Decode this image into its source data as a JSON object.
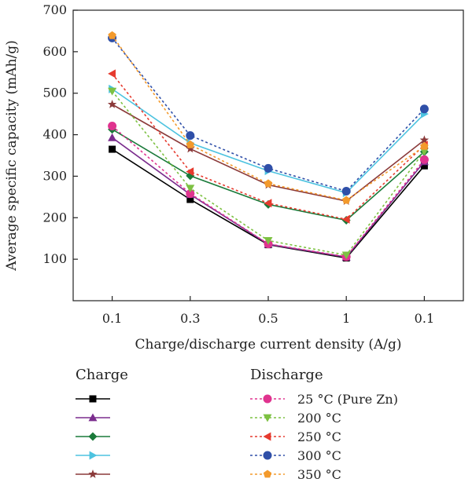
{
  "chart_data": {
    "type": "line",
    "title": "",
    "xlabel": "Charge/discharge current density (A/g)",
    "ylabel": "Average specific capacity (mAh/g)",
    "categories": [
      "0.1",
      "0.3",
      "0.5",
      "1",
      "0.1"
    ],
    "ylim": [
      0,
      700
    ],
    "yticks": [
      "100",
      "200",
      "300",
      "400",
      "500",
      "600",
      "700"
    ],
    "grid": false,
    "legend": {
      "placement": "bottom",
      "charge_title": "Charge",
      "discharge_title": "Discharge"
    },
    "series": [
      {
        "group": "charge",
        "name": "",
        "color": "#000000",
        "marker": "square",
        "dash": false,
        "values": [
          365,
          244,
          135,
          103,
          325
        ]
      },
      {
        "group": "charge",
        "name": "",
        "color": "#7b2d8e",
        "marker": "triangle-up",
        "dash": false,
        "values": [
          393,
          256,
          136,
          105,
          335
        ]
      },
      {
        "group": "charge",
        "name": "",
        "color": "#1a7a3a",
        "marker": "diamond",
        "dash": false,
        "values": [
          413,
          301,
          232,
          194,
          359
        ]
      },
      {
        "group": "charge",
        "name": "",
        "color": "#4dc3e0",
        "marker": "triangle-right",
        "dash": false,
        "values": [
          510,
          380,
          313,
          260,
          450
        ]
      },
      {
        "group": "charge",
        "name": "",
        "color": "#8b3a3a",
        "marker": "star",
        "dash": false,
        "values": [
          473,
          366,
          279,
          240,
          387
        ]
      },
      {
        "group": "discharge",
        "name": "25 °C (Pure Zn)",
        "color": "#e0338f",
        "marker": "circle",
        "dash": true,
        "values": [
          421,
          258,
          137,
          106,
          340
        ]
      },
      {
        "group": "discharge",
        "name": "200 °C",
        "color": "#7dc142",
        "marker": "triangle-down",
        "dash": true,
        "values": [
          505,
          271,
          145,
          110,
          360
        ]
      },
      {
        "group": "discharge",
        "name": "250 °C",
        "color": "#e63a2e",
        "marker": "triangle-left",
        "dash": true,
        "values": [
          547,
          311,
          235,
          196,
          375
        ]
      },
      {
        "group": "discharge",
        "name": "300 °C",
        "color": "#2f4fa8",
        "marker": "circle",
        "dash": true,
        "values": [
          633,
          398,
          319,
          264,
          462
        ]
      },
      {
        "group": "discharge",
        "name": "350 °C",
        "color": "#f39a2c",
        "marker": "pentagon",
        "dash": true,
        "values": [
          639,
          376,
          282,
          242,
          372
        ]
      }
    ]
  }
}
